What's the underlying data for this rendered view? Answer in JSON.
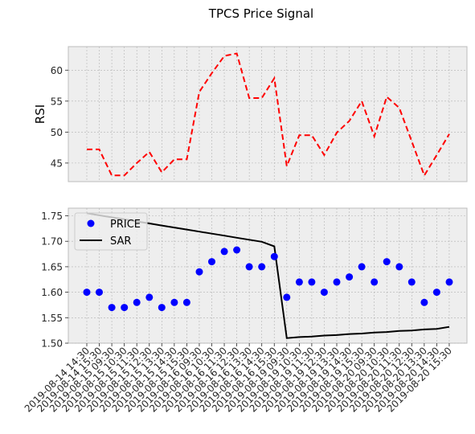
{
  "title": "TPCS Price Signal",
  "colors": {
    "axes_bg": "#eeeeee",
    "grid": "#b2b2b2",
    "frame": "#bcbcbc",
    "rsi_line": "#ff0000",
    "price_marker": "#0000ff",
    "sar_line": "#000000"
  },
  "chart_data": [
    {
      "type": "line",
      "ylabel": "RSI",
      "ylim": [
        42,
        63.8
      ],
      "yticks": [
        45,
        50,
        55,
        60
      ],
      "grid": true,
      "line_style": "dashed",
      "x": [
        "2019-08-14 14:30",
        "2019-08-14 15:30",
        "2019-08-15 09:30",
        "2019-08-15 10:30",
        "2019-08-15 11:30",
        "2019-08-15 12:30",
        "2019-08-15 13:30",
        "2019-08-15 14:30",
        "2019-08-15 15:30",
        "2019-08-16 09:30",
        "2019-08-16 10:30",
        "2019-08-16 11:30",
        "2019-08-16 12:30",
        "2019-08-16 13:30",
        "2019-08-16 14:30",
        "2019-08-16 15:30",
        "2019-08-19 09:30",
        "2019-08-19 10:30",
        "2019-08-19 11:30",
        "2019-08-19 12:30",
        "2019-08-19 13:30",
        "2019-08-19 14:30",
        "2019-08-19 15:30",
        "2019-08-20 09:30",
        "2019-08-20 10:30",
        "2019-08-20 11:30",
        "2019-08-20 12:30",
        "2019-08-20 13:30",
        "2019-08-20 14:30",
        "2019-08-20 15:30"
      ],
      "series": [
        {
          "values": [
            47.2,
            47.2,
            43.0,
            43.0,
            45.0,
            46.8,
            43.5,
            45.6,
            45.6,
            56.5,
            59.5,
            62.3,
            62.7,
            55.5,
            55.5,
            58.7,
            44.5,
            49.5,
            49.5,
            46.3,
            49.9,
            51.8,
            55.0,
            49.3,
            55.7,
            53.9,
            48.5,
            43.0,
            46.3,
            49.7
          ]
        }
      ]
    },
    {
      "type": "scatter",
      "ylim": [
        1.5,
        1.765
      ],
      "yticks": [
        1.5,
        1.55,
        1.6,
        1.65,
        1.7,
        1.75
      ],
      "ytick_labels": [
        "1.50",
        "1.55",
        "1.60",
        "1.65",
        "1.70",
        "1.75"
      ],
      "grid": true,
      "legend": {
        "placement": "top-left",
        "entries": [
          "PRICE",
          "SAR"
        ]
      },
      "x": [
        "2019-08-14 14:30",
        "2019-08-14 15:30",
        "2019-08-15 09:30",
        "2019-08-15 10:30",
        "2019-08-15 11:30",
        "2019-08-15 12:30",
        "2019-08-15 13:30",
        "2019-08-15 14:30",
        "2019-08-15 15:30",
        "2019-08-16 09:30",
        "2019-08-16 10:30",
        "2019-08-16 11:30",
        "2019-08-16 12:30",
        "2019-08-16 13:30",
        "2019-08-16 14:30",
        "2019-08-16 15:30",
        "2019-08-19 09:30",
        "2019-08-19 10:30",
        "2019-08-19 11:30",
        "2019-08-19 12:30",
        "2019-08-19 13:30",
        "2019-08-19 14:30",
        "2019-08-19 15:30",
        "2019-08-20 09:30",
        "2019-08-20 10:30",
        "2019-08-20 11:30",
        "2019-08-20 12:30",
        "2019-08-20 13:30",
        "2019-08-20 14:30",
        "2019-08-20 15:30"
      ],
      "series": [
        {
          "name": "PRICE",
          "kind": "markers",
          "values": [
            1.6,
            1.6,
            1.57,
            1.57,
            1.58,
            1.59,
            1.57,
            1.58,
            1.58,
            1.64,
            1.66,
            1.68,
            1.683,
            1.65,
            1.65,
            1.67,
            1.59,
            1.62,
            1.62,
            1.6,
            1.62,
            1.63,
            1.65,
            1.62,
            1.66,
            1.65,
            1.62,
            1.58,
            1.6,
            1.62
          ]
        },
        {
          "name": "SAR",
          "kind": "line",
          "values": [
            1.755,
            1.751,
            1.747,
            1.743,
            1.739,
            1.735,
            1.731,
            1.727,
            1.723,
            1.719,
            1.715,
            1.711,
            1.707,
            1.703,
            1.699,
            1.69,
            1.51,
            1.512,
            1.513,
            1.515,
            1.516,
            1.518,
            1.519,
            1.521,
            1.522,
            1.524,
            1.525,
            1.527,
            1.528,
            1.532
          ]
        }
      ]
    }
  ]
}
